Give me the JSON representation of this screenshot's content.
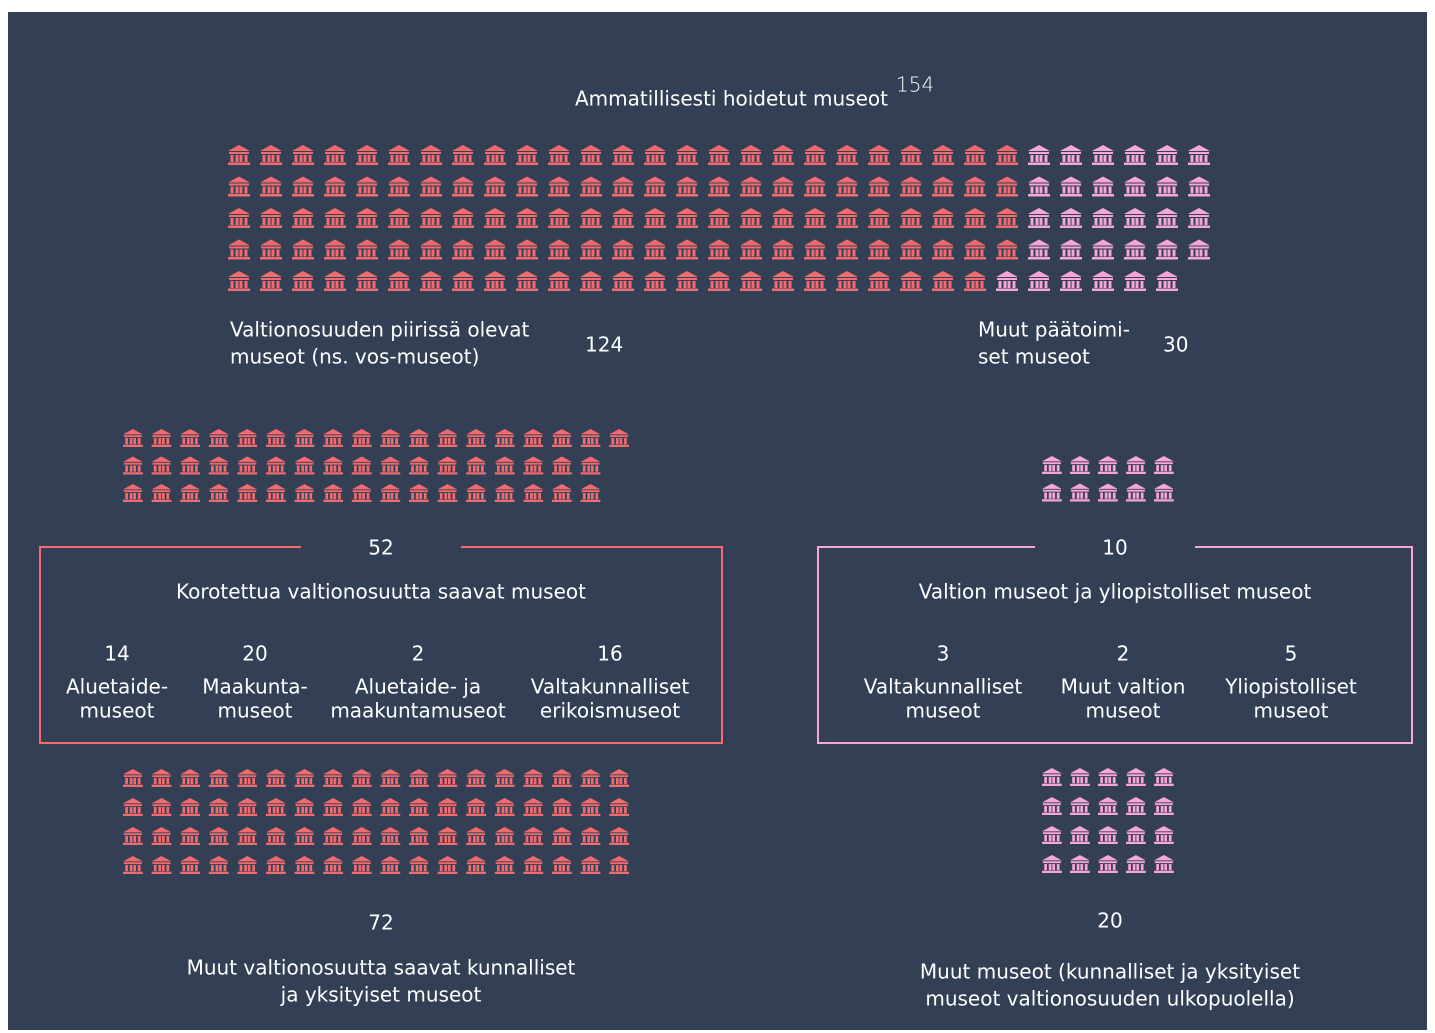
{
  "title": "Ammatillisesti hoidetut museot",
  "total": 154,
  "vos": {
    "lines": [
      "Valtionosuuden piirissä olevat",
      "museot (ns. vos-museot)"
    ],
    "value": 124,
    "color": "#f26b6f"
  },
  "other": {
    "lines": [
      "Muut päätoimi-",
      "set museot"
    ],
    "value": 30,
    "color": "#f7a6d8"
  },
  "raised": {
    "value": 52,
    "title": "Korotettua valtionosuutta saavat museot",
    "color": "#f26b6f",
    "items": [
      {
        "value": 14,
        "lines": [
          "Aluetaide-",
          "museot"
        ]
      },
      {
        "value": 20,
        "lines": [
          "Maakunta-",
          "museot"
        ]
      },
      {
        "value": 2,
        "lines": [
          "Aluetaide- ja",
          "maakuntamuseot"
        ]
      },
      {
        "value": 16,
        "lines": [
          "Valtakunnalliset",
          "erikoismuseot"
        ]
      }
    ]
  },
  "state": {
    "value": 10,
    "title": "Valtion museot ja yliopistolliset museot",
    "color": "#f7a6d8",
    "items": [
      {
        "value": 3,
        "lines": [
          "Valtakunnalliset",
          "museot"
        ]
      },
      {
        "value": 2,
        "lines": [
          "Muut valtion",
          "museot"
        ]
      },
      {
        "value": 5,
        "lines": [
          "Yliopistolliset",
          "museot"
        ]
      }
    ]
  },
  "other_vos": {
    "value": 72,
    "lines": [
      "Muut valtionosuutta saavat kunnalliset",
      "ja yksityiset museot"
    ],
    "color": "#f26b6f"
  },
  "outside": {
    "value": 20,
    "lines": [
      "Muut museot (kunnalliset ja yksityiset",
      "museot valtionosuuden ulkopuolella)"
    ],
    "color": "#f7a6d8"
  }
}
